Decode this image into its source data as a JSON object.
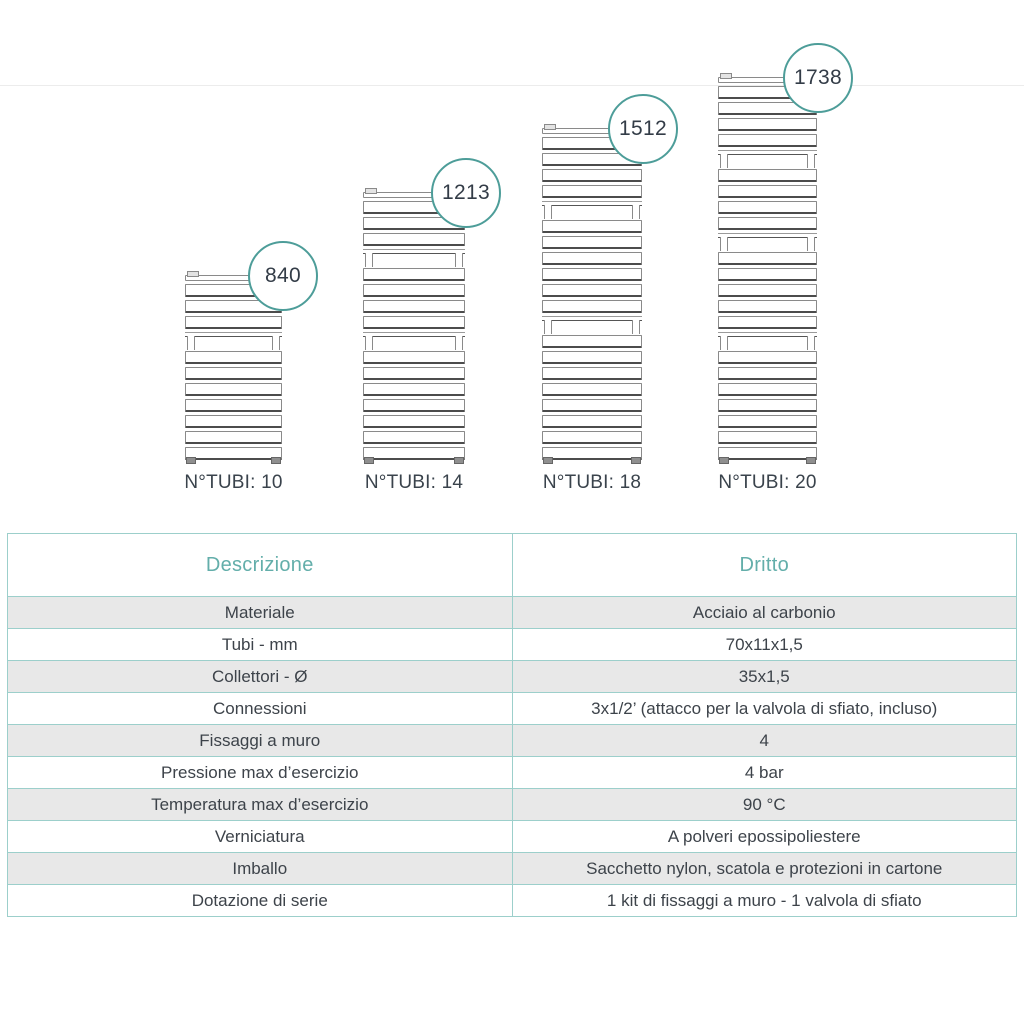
{
  "colors": {
    "accent_teal": "#4d9d99",
    "table_border_teal": "#9ccfcb",
    "header_text_teal": "#63aeaa",
    "row_alt_gray": "#e8e8e8",
    "dark_text": "#3a434c",
    "drawing_line_gray": "#8a8a8a"
  },
  "radiators": [
    {
      "height_label": "840",
      "height_mm": 840,
      "tubes": 10,
      "tubes_label": "N°TUBI: 10",
      "sections": [
        3,
        7
      ]
    },
    {
      "height_label": "1213",
      "height_mm": 1213,
      "tubes": 14,
      "tubes_label": "N°TUBI: 14",
      "sections": [
        3,
        4,
        7
      ]
    },
    {
      "height_label": "1512",
      "height_mm": 1512,
      "tubes": 18,
      "tubes_label": "N°TUBI: 18",
      "sections": [
        4,
        6,
        8
      ]
    },
    {
      "height_label": "1738",
      "height_mm": 1738,
      "tubes": 20,
      "tubes_label": "N°TUBI: 20",
      "sections": [
        4,
        4,
        5,
        7
      ]
    }
  ],
  "table": {
    "headers": [
      "Descrizione",
      "Dritto"
    ],
    "rows": [
      [
        "Materiale",
        "Acciaio al carbonio"
      ],
      [
        "Tubi - mm",
        "70x11x1,5"
      ],
      [
        "Collettori - Ø",
        "35x1,5"
      ],
      [
        "Connessioni",
        "3x1/2’ (attacco per la valvola di sfiato, incluso)"
      ],
      [
        "Fissaggi a muro",
        "4"
      ],
      [
        "Pressione max d’esercizio",
        "4 bar"
      ],
      [
        "Temperatura max d’esercizio",
        "90 °C"
      ],
      [
        "Verniciatura",
        "A polveri epossipoliestere"
      ],
      [
        "Imballo",
        "Sacchetto nylon, scatola e protezioni in cartone"
      ],
      [
        "Dotazione di serie",
        "1 kit di fissaggi a muro - 1 valvola di sfiato"
      ]
    ]
  }
}
